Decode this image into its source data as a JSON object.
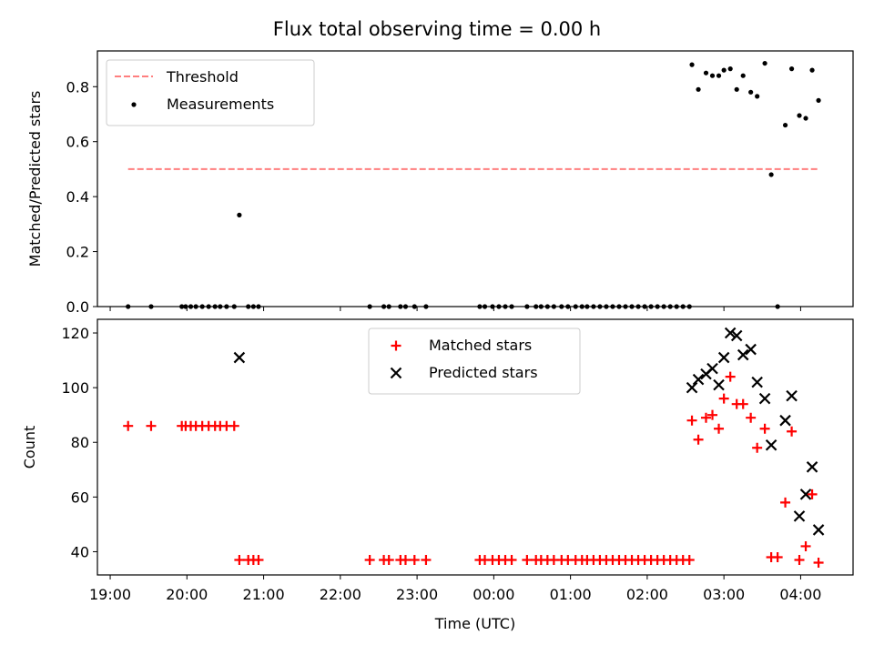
{
  "chart_data": {
    "title": "Flux total observing time = 0.00 h",
    "xlabel": "Time (UTC)",
    "x_axis_type": "time",
    "x_tick_labels": [
      "19:00",
      "20:00",
      "21:00",
      "22:00",
      "23:00",
      "00:00",
      "01:00",
      "02:00",
      "03:00",
      "04:00"
    ],
    "x_range": [
      "18:50",
      "04:41"
    ],
    "grid": false,
    "panels": [
      {
        "type": "scatter",
        "ylabel": "Matched/Predicted stars",
        "ylim": [
          0.0,
          0.93
        ],
        "y_ticks": [
          0.0,
          0.2,
          0.4,
          0.6,
          0.8
        ],
        "y_tick_labels": [
          "0.0",
          "0.2",
          "0.4",
          "0.6",
          "0.8"
        ],
        "legend_position": "top-left",
        "series": [
          {
            "name": "Threshold",
            "kind": "line",
            "style": "dashed",
            "color": "#ff7f7f",
            "x": [
              "19:14",
              "04:15"
            ],
            "y": [
              0.5,
              0.5
            ]
          },
          {
            "name": "Measurements",
            "kind": "scatter",
            "marker": "dot",
            "color": "#000000",
            "x": [
              "19:14",
              "19:32",
              "19:56",
              "19:59",
              "20:03",
              "20:07",
              "20:12",
              "20:17",
              "20:22",
              "20:26",
              "20:31",
              "20:37",
              "20:41",
              "20:48",
              "20:52",
              "20:56",
              "22:23",
              "22:34",
              "22:38",
              "22:47",
              "22:51",
              "22:58",
              "23:07",
              "23:49",
              "23:53",
              "23:59",
              "00:04",
              "00:09",
              "00:14",
              "00:26",
              "00:33",
              "00:37",
              "00:42",
              "00:47",
              "00:53",
              "00:58",
              "01:04",
              "01:09",
              "01:13",
              "01:18",
              "01:23",
              "01:28",
              "01:33",
              "01:38",
              "01:43",
              "01:48",
              "01:53",
              "01:58",
              "02:03",
              "02:08",
              "02:13",
              "02:18",
              "02:23",
              "02:28",
              "02:33",
              "02:35",
              "02:40",
              "02:46",
              "02:51",
              "02:56",
              "03:00",
              "03:05",
              "03:10",
              "03:15",
              "03:21",
              "03:26",
              "03:32",
              "03:37",
              "03:42",
              "03:48",
              "03:53",
              "03:59",
              "04:04",
              "04:09",
              "04:14"
            ],
            "y": [
              0.0,
              0.0,
              0.0,
              0.0,
              0.0,
              0.0,
              0.0,
              0.0,
              0.0,
              0.0,
              0.0,
              0.0,
              0.333,
              0.0,
              0.0,
              0.0,
              0.0,
              0.0,
              0.0,
              0.0,
              0.0,
              0.0,
              0.0,
              0.0,
              0.0,
              0.0,
              0.0,
              0.0,
              0.0,
              0.0,
              0.0,
              0.0,
              0.0,
              0.0,
              0.0,
              0.0,
              0.0,
              0.0,
              0.0,
              0.0,
              0.0,
              0.0,
              0.0,
              0.0,
              0.0,
              0.0,
              0.0,
              0.0,
              0.0,
              0.0,
              0.0,
              0.0,
              0.0,
              0.0,
              0.0,
              0.88,
              0.79,
              0.85,
              0.84,
              0.84,
              0.86,
              0.865,
              0.79,
              0.84,
              0.78,
              0.765,
              0.885,
              0.48,
              0.0,
              0.66,
              0.865,
              0.695,
              0.685,
              0.86,
              0.75
            ]
          }
        ]
      },
      {
        "type": "scatter",
        "ylabel": "Count",
        "ylim": [
          31.5,
          125
        ],
        "y_ticks": [
          40,
          60,
          80,
          100,
          120
        ],
        "y_tick_labels": [
          "40",
          "60",
          "80",
          "100",
          "120"
        ],
        "legend_position": "top-center",
        "series": [
          {
            "name": "Matched stars",
            "kind": "scatter",
            "marker": "plus",
            "color": "#ff0000",
            "x": [
              "19:14",
              "19:32",
              "19:56",
              "19:59",
              "20:03",
              "20:07",
              "20:12",
              "20:17",
              "20:22",
              "20:26",
              "20:31",
              "20:37",
              "20:41",
              "20:48",
              "20:52",
              "20:56",
              "22:23",
              "22:34",
              "22:38",
              "22:47",
              "22:51",
              "22:58",
              "23:07",
              "23:49",
              "23:53",
              "23:59",
              "00:04",
              "00:09",
              "00:14",
              "00:26",
              "00:33",
              "00:37",
              "00:42",
              "00:47",
              "00:53",
              "00:58",
              "01:04",
              "01:09",
              "01:13",
              "01:18",
              "01:23",
              "01:28",
              "01:33",
              "01:38",
              "01:43",
              "01:48",
              "01:53",
              "01:58",
              "02:03",
              "02:08",
              "02:13",
              "02:18",
              "02:23",
              "02:28",
              "02:33",
              "02:35",
              "02:40",
              "02:46",
              "02:51",
              "02:56",
              "03:00",
              "03:05",
              "03:10",
              "03:15",
              "03:21",
              "03:26",
              "03:32",
              "03:37",
              "03:42",
              "03:48",
              "03:53",
              "03:59",
              "04:04",
              "04:09",
              "04:14"
            ],
            "y": [
              86,
              86,
              86,
              86,
              86,
              86,
              86,
              86,
              86,
              86,
              86,
              86,
              37,
              37,
              37,
              37,
              37,
              37,
              37,
              37,
              37,
              37,
              37,
              37,
              37,
              37,
              37,
              37,
              37,
              37,
              37,
              37,
              37,
              37,
              37,
              37,
              37,
              37,
              37,
              37,
              37,
              37,
              37,
              37,
              37,
              37,
              37,
              37,
              37,
              37,
              37,
              37,
              37,
              37,
              37,
              88,
              81,
              89,
              90,
              85,
              96,
              104,
              94,
              94,
              89,
              78,
              85,
              38,
              38,
              58,
              84,
              37,
              42,
              61,
              36
            ]
          },
          {
            "name": "Predicted stars",
            "kind": "scatter",
            "marker": "x",
            "color": "#000000",
            "x": [
              "20:41",
              "02:35",
              "02:40",
              "02:46",
              "02:51",
              "02:56",
              "03:00",
              "03:05",
              "03:10",
              "03:15",
              "03:21",
              "03:26",
              "03:32",
              "03:37",
              "03:48",
              "03:53",
              "03:59",
              "04:04",
              "04:09",
              "04:14"
            ],
            "y": [
              111,
              100,
              103,
              105,
              107,
              101,
              111,
              120,
              119,
              112,
              114,
              102,
              96,
              79,
              88,
              97,
              53,
              61,
              71,
              48
            ]
          }
        ]
      }
    ]
  }
}
